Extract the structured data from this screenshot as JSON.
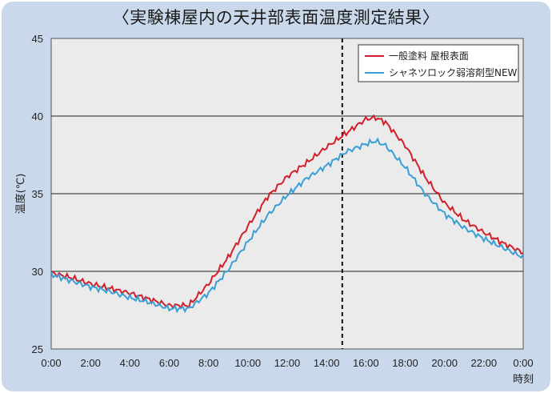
{
  "chart_data": {
    "type": "line",
    "title": "〈実験棟屋内の天井部表面温度測定結果〉",
    "ylabel": "温度(℃)",
    "xlabel": "時刻",
    "x_ticks": [
      "0:00",
      "2:00",
      "4:00",
      "6:00",
      "8:00",
      "10:00",
      "12:00",
      "14:00",
      "16:00",
      "18:00",
      "20:00",
      "22:00",
      "0:00"
    ],
    "y_ticks": [
      "25",
      "30",
      "35",
      "40",
      "45"
    ],
    "ylim": [
      25,
      45
    ],
    "xlim": [
      0,
      24
    ],
    "grid": "horizontal",
    "legend_position": "top-right",
    "vertical_marker_hour": 14.8,
    "x": [
      0,
      1,
      2,
      3,
      4,
      5,
      6,
      7,
      8,
      9,
      10,
      11,
      12,
      13,
      14,
      15,
      16,
      16.5,
      17,
      18,
      19,
      20,
      21,
      22,
      23,
      24
    ],
    "series": [
      {
        "name": "一般塗料 屋根表面",
        "color": "#d21f2b",
        "values": [
          29.9,
          29.6,
          29.2,
          28.9,
          28.6,
          28.2,
          27.8,
          27.8,
          29.2,
          30.9,
          32.9,
          34.8,
          36.1,
          37.0,
          38.0,
          38.9,
          39.8,
          39.9,
          39.6,
          38.1,
          36.1,
          34.4,
          33.3,
          32.5,
          31.8,
          31.2
        ]
      },
      {
        "name": "シャネツロック弱溶剤型NEW",
        "color": "#3a9fd4",
        "values": [
          29.8,
          29.4,
          29.0,
          28.7,
          28.3,
          28.0,
          27.6,
          27.6,
          28.6,
          30.1,
          31.9,
          33.6,
          34.9,
          36.0,
          36.8,
          37.7,
          38.2,
          38.4,
          38.1,
          36.7,
          35.0,
          33.7,
          32.8,
          32.1,
          31.5,
          30.9
        ]
      }
    ]
  }
}
